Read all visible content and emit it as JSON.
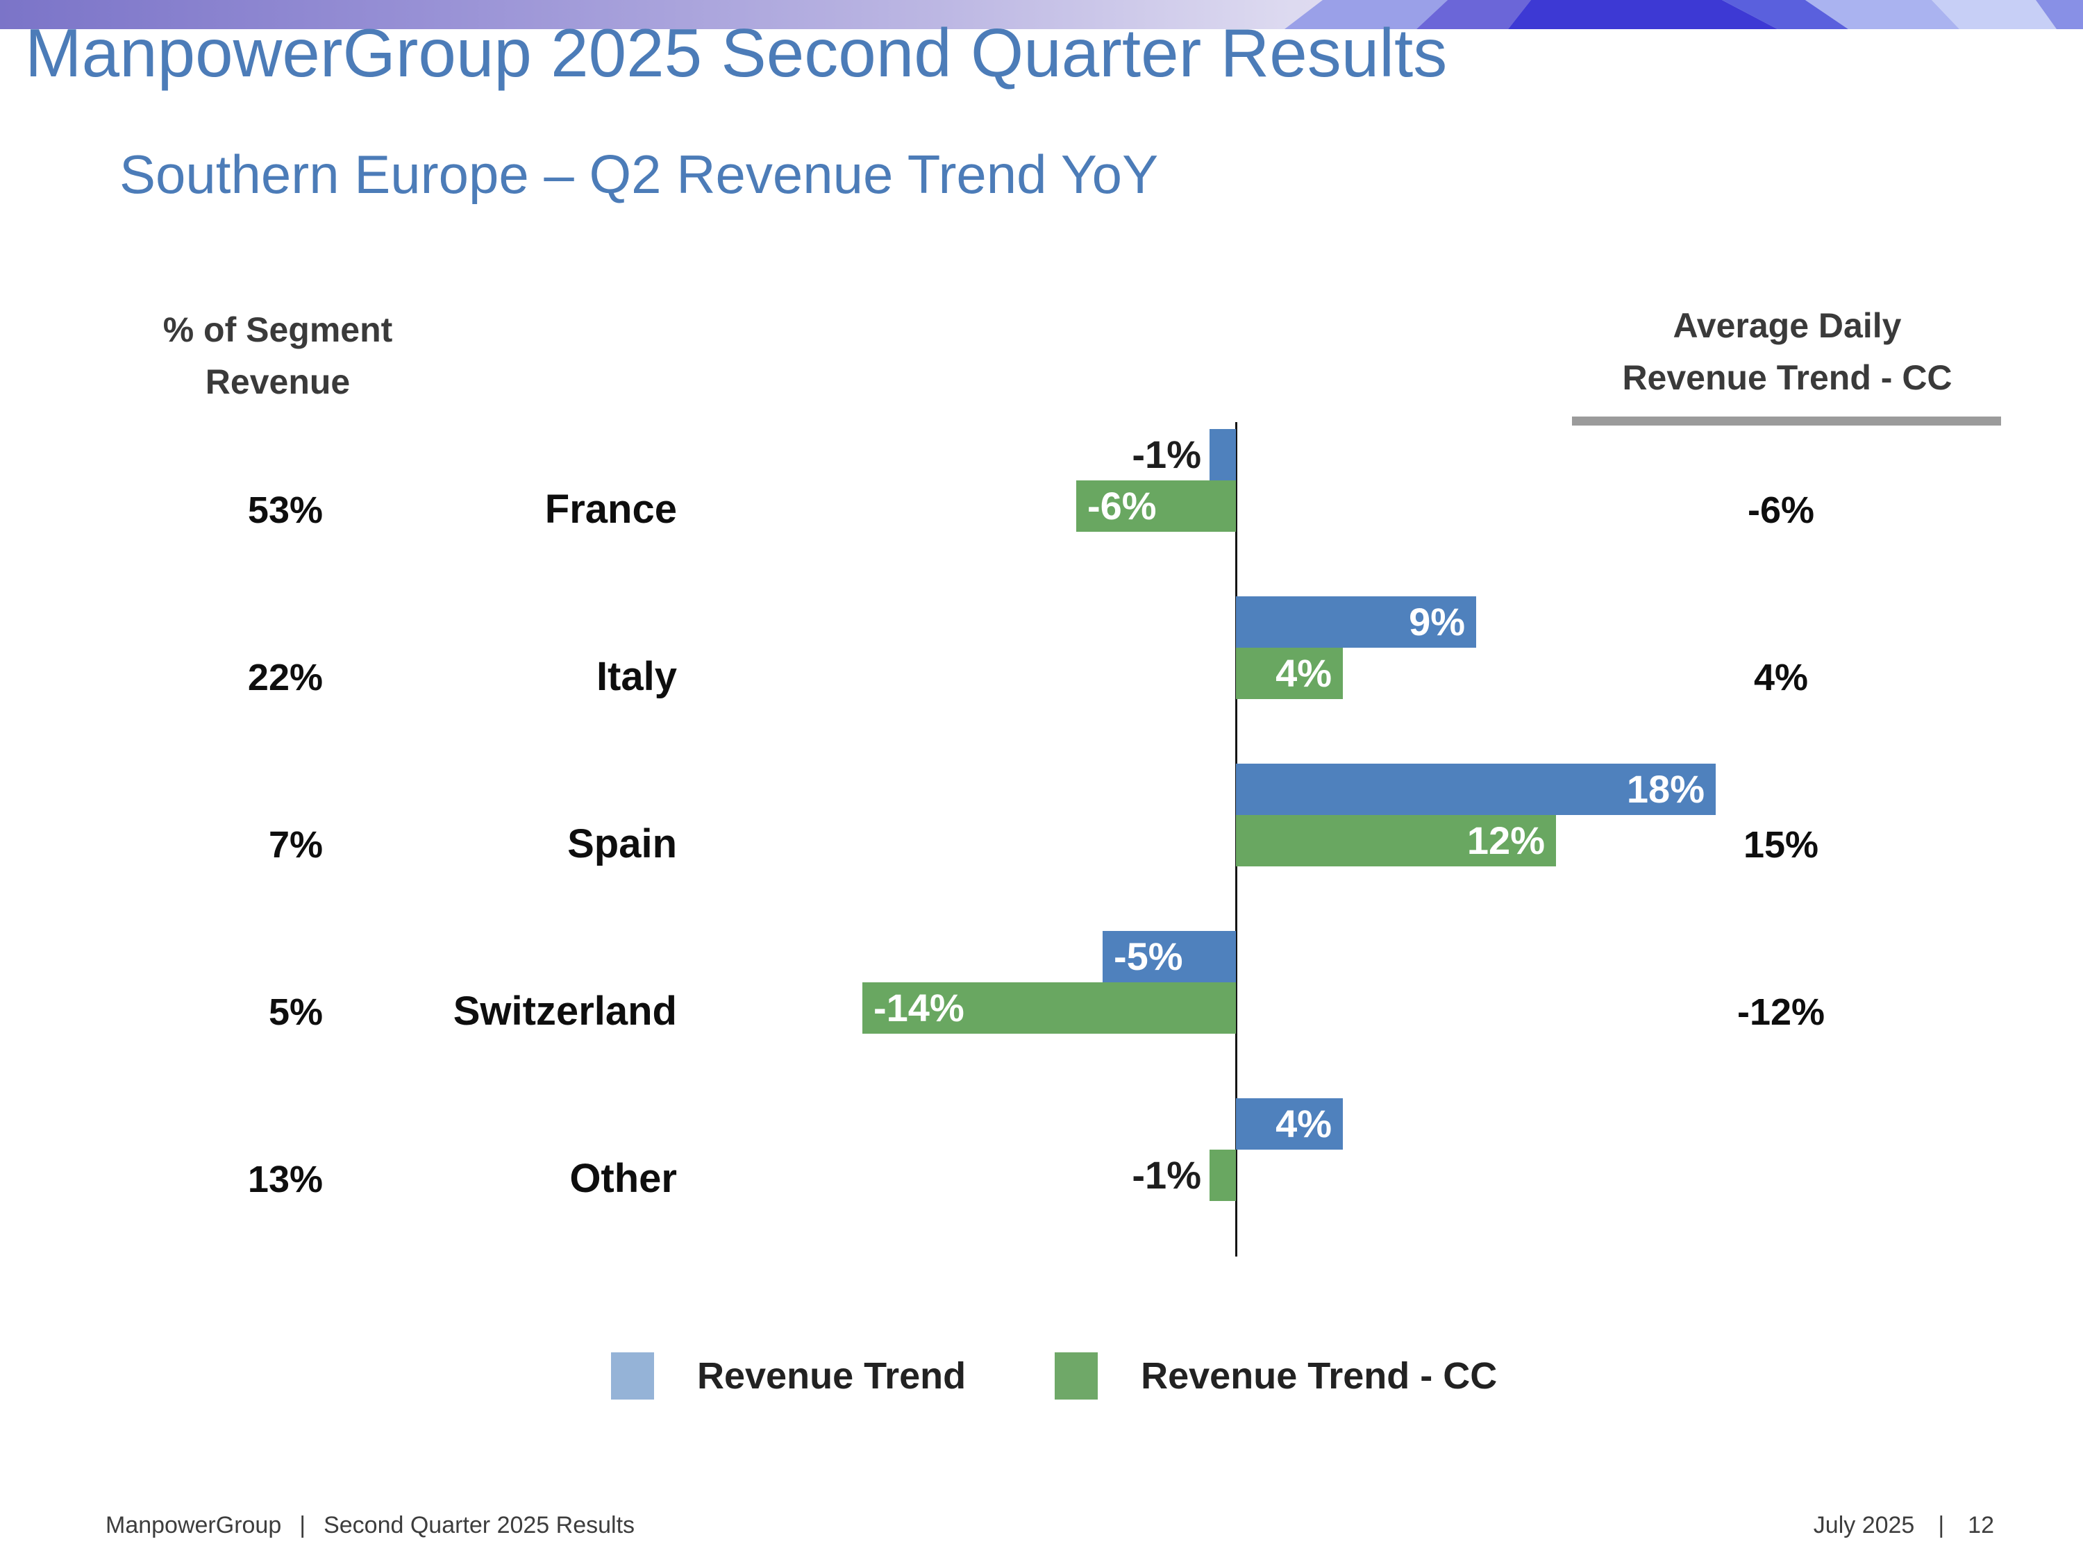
{
  "header": {
    "title": "ManpowerGroup 2025 Second Quarter Results",
    "subtitle": "Southern Europe – Q2 Revenue Trend YoY",
    "banner_colors": {
      "gradient_left": "#7b74c8",
      "gradient_mid": "#bcb7e3",
      "gradient_right": "#e6e4f5",
      "facet_bright_blue": "#3d39d4",
      "facet_slate": "#6b66d8",
      "facet_periwinkle": "#aab3f0",
      "facet_light": "#c7cff6"
    }
  },
  "chart_data": {
    "type": "bar",
    "orientation": "horizontal",
    "title": "Southern Europe – Q2 Revenue Trend YoY",
    "left_column_header": [
      "% of Segment",
      "Revenue"
    ],
    "right_column_header": [
      "Average Daily",
      "Revenue Trend - CC"
    ],
    "value_suffix": "%",
    "xlim": [
      -16,
      20
    ],
    "grid": false,
    "legend_position": "bottom",
    "series": [
      {
        "name": "Revenue Trend",
        "color": "#4f81bd",
        "legend_color": "#95b3d7"
      },
      {
        "name": "Revenue Trend - CC",
        "color": "#69a761",
        "legend_color": "#6fa868"
      }
    ],
    "rows": [
      {
        "country": "France",
        "segment_share": "53%",
        "revenue_trend": -1,
        "revenue_trend_cc": -6,
        "avg_daily_cc": "-6%"
      },
      {
        "country": "Italy",
        "segment_share": "22%",
        "revenue_trend": 9,
        "revenue_trend_cc": 4,
        "avg_daily_cc": "4%"
      },
      {
        "country": "Spain",
        "segment_share": "7%",
        "revenue_trend": 18,
        "revenue_trend_cc": 12,
        "avg_daily_cc": "15%"
      },
      {
        "country": "Switzerland",
        "segment_share": "5%",
        "revenue_trend": -5,
        "revenue_trend_cc": -14,
        "avg_daily_cc": "-12%"
      },
      {
        "country": "Other",
        "segment_share": "13%",
        "revenue_trend": 4,
        "revenue_trend_cc": -1,
        "avg_daily_cc": ""
      }
    ]
  },
  "legend": {
    "items": [
      {
        "label": "Revenue Trend",
        "color": "#95b3d7"
      },
      {
        "label": "Revenue Trend - CC",
        "color": "#6fa868"
      }
    ]
  },
  "footer": {
    "left_app": "ManpowerGroup",
    "separator": "|",
    "left_doc": "Second Quarter 2025 Results",
    "right_date": "July 2025",
    "right_page": "12"
  }
}
